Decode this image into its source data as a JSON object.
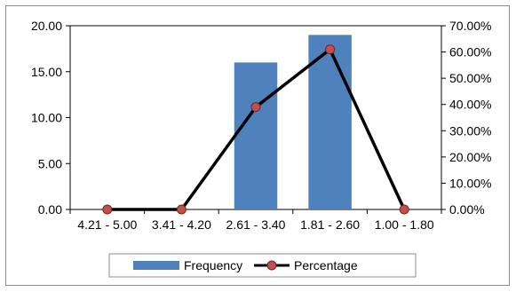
{
  "chart_data": {
    "type": "bar",
    "categories": [
      "4.21 - 5.00",
      "3.41 - 4.20",
      "2.61 - 3.40",
      "1.81 - 2.60",
      "1.00 - 1.80"
    ],
    "series": [
      {
        "name": "Frequency",
        "type": "bar",
        "axis": "left",
        "values": [
          0,
          0,
          16,
          19,
          0
        ]
      },
      {
        "name": "Percentage",
        "type": "line",
        "axis": "right",
        "values": [
          0.0,
          0.0,
          0.39,
          0.61,
          0.0
        ]
      }
    ],
    "y_left": {
      "range": [
        0,
        20
      ],
      "ticks": [
        "0.00",
        "5.00",
        "10.00",
        "15.00",
        "20.00"
      ]
    },
    "y_right": {
      "range": [
        0,
        0.7
      ],
      "ticks": [
        "0.00%",
        "10.00%",
        "20.00%",
        "30.00%",
        "40.00%",
        "50.00%",
        "60.00%",
        "70.00%"
      ]
    },
    "legend": {
      "position": "bottom",
      "items": [
        "Frequency",
        "Percentage"
      ]
    },
    "colors": {
      "bar": "#4f81bd",
      "line": "#000000",
      "marker_fill": "#c0504d",
      "marker_edge": "#7f1f1f"
    },
    "grid": false
  }
}
